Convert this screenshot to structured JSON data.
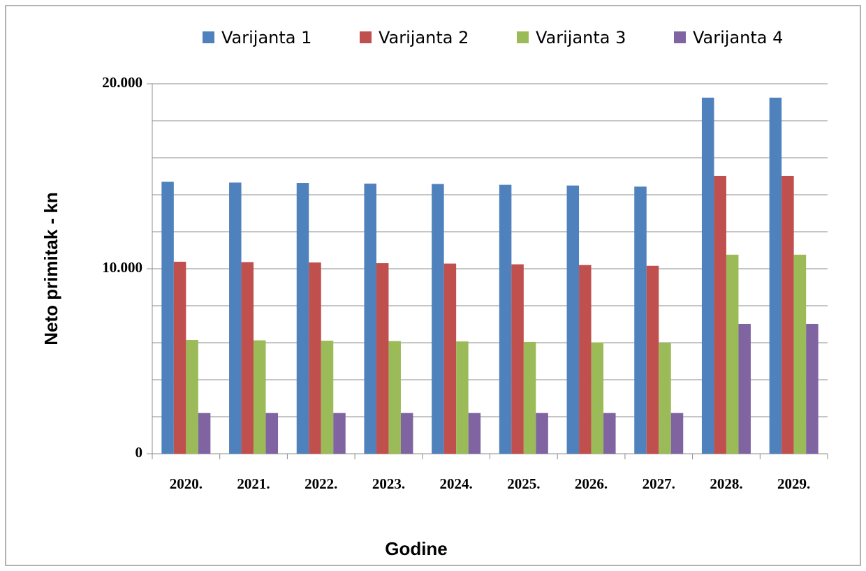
{
  "chart_data": {
    "type": "bar",
    "y_label": "Neto primitak - kn",
    "x_label": "Godine",
    "categories": [
      "2020.",
      "2021.",
      "2022.",
      "2023.",
      "2024.",
      "2025.",
      "2026.",
      "2027.",
      "2028.",
      "2029."
    ],
    "series": [
      {
        "name": "Varijanta 1",
        "color": "#4f81bd",
        "values": [
          14700,
          14660,
          14640,
          14600,
          14580,
          14540,
          14500,
          14440,
          19250,
          19250
        ]
      },
      {
        "name": "Varijanta 2",
        "color": "#c0504d",
        "values": [
          10380,
          10360,
          10340,
          10300,
          10280,
          10240,
          10200,
          10160,
          15020,
          15020
        ]
      },
      {
        "name": "Varijanta 3",
        "color": "#9bbb59",
        "values": [
          6150,
          6130,
          6110,
          6090,
          6070,
          6040,
          6020,
          6000,
          10760,
          10760
        ]
      },
      {
        "name": "Varijanta 4",
        "color": "#8064a2",
        "values": [
          2200,
          2200,
          2200,
          2200,
          2200,
          2200,
          2200,
          2200,
          7020,
          7020
        ]
      }
    ],
    "ylim": [
      0,
      20000
    ],
    "yticks": [
      0,
      {
        "value": 10000,
        "label": "10.000"
      },
      {
        "value": 20000,
        "label": "20.000"
      }
    ],
    "minor_yticks": [
      2000,
      4000,
      6000,
      8000,
      12000,
      14000,
      16000,
      18000
    ],
    "grid": true,
    "legend": "top"
  }
}
